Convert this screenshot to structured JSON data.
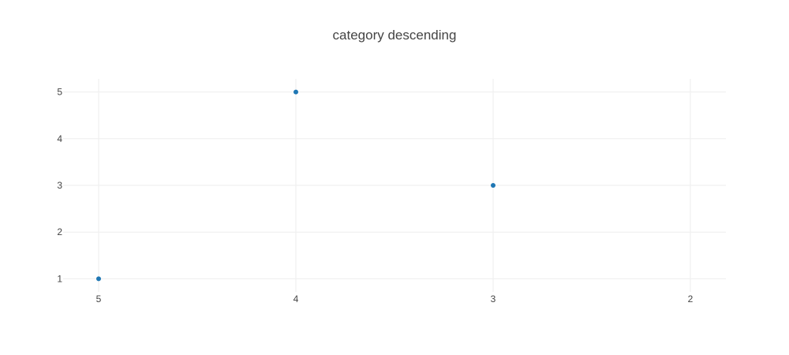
{
  "chart_data": {
    "type": "scatter",
    "title": "category descending",
    "xlabel": "",
    "ylabel": "",
    "x_axis_type": "category",
    "x_order": "descending",
    "x_categories": [
      "5",
      "4",
      "3",
      "2"
    ],
    "x_tick_labels": [
      "5",
      "4",
      "3",
      "2"
    ],
    "y_tick_labels": [
      "1",
      "2",
      "3",
      "4",
      "5"
    ],
    "y_ticks": [
      1,
      2,
      3,
      4,
      5
    ],
    "ylim": [
      0.72,
      5.28
    ],
    "grid": true,
    "legend": "none",
    "series": [
      {
        "points": [
          {
            "x": "5",
            "y": 1
          },
          {
            "x": "4",
            "y": 5
          },
          {
            "x": "3",
            "y": 3
          }
        ],
        "color": "#1f77b4"
      }
    ]
  }
}
